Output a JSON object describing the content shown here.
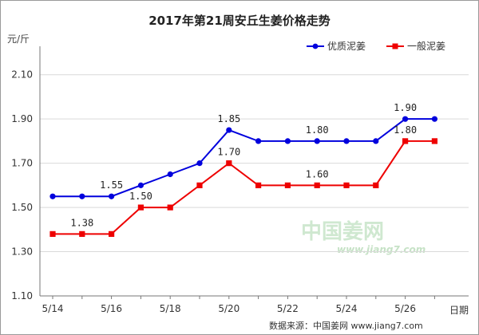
{
  "chart_data": {
    "type": "line",
    "title": "2017年第21周安丘生姜价格走势",
    "ylabel": "元/斤",
    "xlabel": "日期",
    "ylim": [
      1.1,
      2.2
    ],
    "yticks": [
      "1.10",
      "1.30",
      "1.50",
      "1.70",
      "1.90",
      "2.10"
    ],
    "x": [
      "5/14",
      "5/15",
      "5/16",
      "5/17",
      "5/18",
      "5/19",
      "5/20",
      "5/21",
      "5/22",
      "5/23",
      "5/24",
      "5/25",
      "5/26",
      "5/27"
    ],
    "xtick_labels": [
      "5/14",
      "",
      "5/16",
      "",
      "5/18",
      "",
      "5/20",
      "",
      "5/22",
      "",
      "5/24",
      "",
      "5/26",
      ""
    ],
    "grid": true,
    "legend_position": "top-right",
    "series": [
      {
        "name": "优质泥姜",
        "color": "#0000dd",
        "marker": "circle",
        "values": [
          1.55,
          1.55,
          1.55,
          1.6,
          1.65,
          1.7,
          1.85,
          1.8,
          1.8,
          1.8,
          1.8,
          1.8,
          1.9,
          1.9
        ],
        "labels": [
          {
            "index": 2,
            "text": "1.55"
          },
          {
            "index": 6,
            "text": "1.85"
          },
          {
            "index": 9,
            "text": "1.80"
          },
          {
            "index": 12,
            "text": "1.90"
          }
        ]
      },
      {
        "name": "一般泥姜",
        "color": "#ee0000",
        "marker": "square",
        "values": [
          1.38,
          1.38,
          1.38,
          1.5,
          1.5,
          1.6,
          1.7,
          1.6,
          1.6,
          1.6,
          1.6,
          1.6,
          1.8,
          1.8
        ],
        "labels": [
          {
            "index": 1,
            "text": "1.38"
          },
          {
            "index": 3,
            "text": "1.50"
          },
          {
            "index": 6,
            "text": "1.70"
          },
          {
            "index": 9,
            "text": "1.60"
          },
          {
            "index": 12,
            "text": "1.80"
          }
        ]
      }
    ],
    "source": "数据来源：中国姜网  www.jiang7.com",
    "watermark": {
      "text": "中国姜网",
      "url": "www.jiang7.com"
    }
  }
}
